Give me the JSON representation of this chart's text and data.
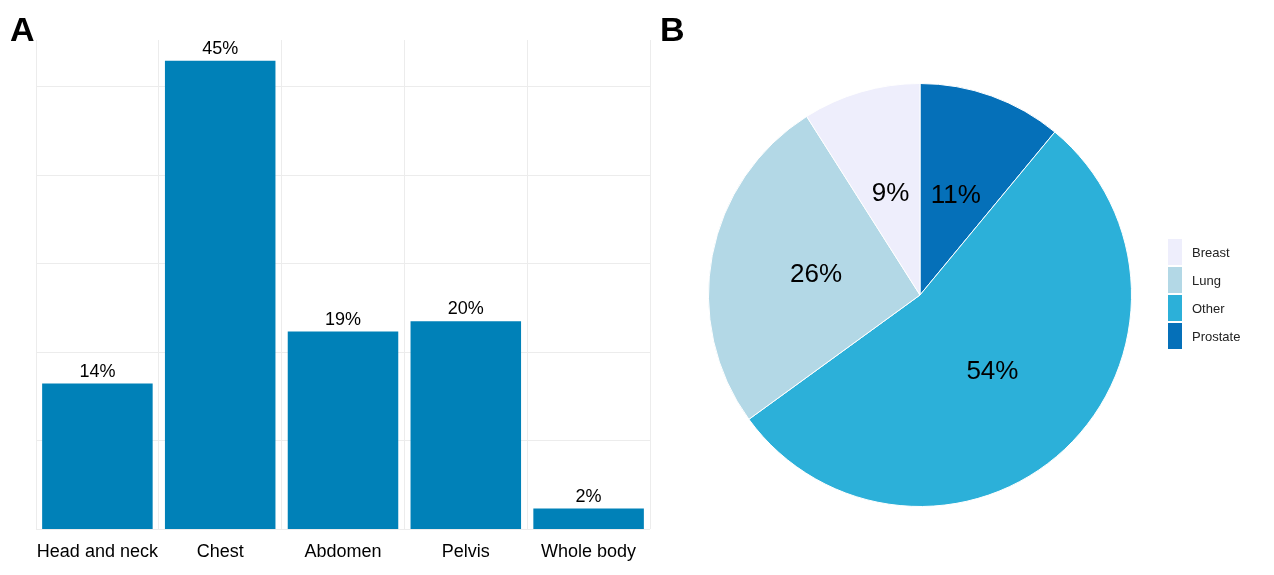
{
  "chart_data": [
    {
      "type": "bar",
      "title": "A",
      "categories": [
        "Head and neck",
        "Chest",
        "Abdomen",
        "Pelvis",
        "Whole body"
      ],
      "values": [
        14,
        45,
        19,
        20,
        2
      ],
      "value_labels": [
        "14%",
        "45%",
        "19%",
        "20%",
        "2%"
      ],
      "color": "#0081b8",
      "ylim": [
        0,
        47
      ],
      "yticks": [
        {
          "value": 0,
          "label": null
        },
        {
          "value": 8.5,
          "label": null
        },
        {
          "value": 17,
          "label": null
        },
        {
          "value": 25.5,
          "label": null
        },
        {
          "value": 34,
          "label": null
        },
        {
          "value": 42.5,
          "label": null
        }
      ],
      "grid": true,
      "tick_labels": "x"
    },
    {
      "type": "pie",
      "title": "B",
      "categories": [
        "Breast",
        "Lung",
        "Other",
        "Prostate"
      ],
      "values": [
        9,
        26,
        54,
        11
      ],
      "colors": [
        "#eeeefc",
        "#b3d8e6",
        "#2cb0d9",
        "#0570b9"
      ],
      "value_labels": [
        "9%",
        "26%",
        "54%",
        "11%"
      ],
      "legend": "right"
    }
  ]
}
